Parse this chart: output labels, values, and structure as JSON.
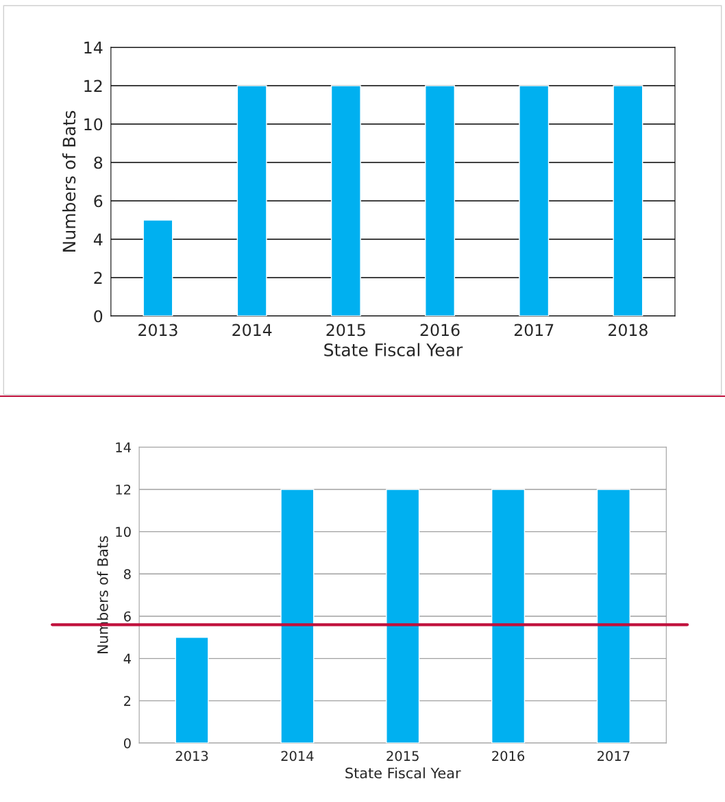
{
  "chart_data": [
    {
      "type": "bar",
      "xlabel": "State Fiscal Year",
      "ylabel": "Numbers of Bats",
      "categories": [
        "2013",
        "2014",
        "2015",
        "2016",
        "2017",
        "2018"
      ],
      "values": [
        5,
        12,
        12,
        12,
        12,
        12
      ],
      "color": "#00b0f0",
      "ylim": [
        0,
        14
      ],
      "yticks": [
        0,
        2,
        4,
        6,
        8,
        10,
        12,
        14
      ],
      "grid": "y"
    },
    {
      "type": "bar",
      "xlabel": "State Fiscal Year",
      "ylabel": "Numbers of Bats",
      "categories": [
        "2013",
        "2014",
        "2015",
        "2016",
        "2017"
      ],
      "values": [
        5,
        12,
        12,
        12,
        12
      ],
      "color": "#00b0f0",
      "ylim": [
        0,
        14
      ],
      "yticks": [
        0,
        2,
        4,
        6,
        8,
        10,
        12,
        14
      ],
      "grid": "y",
      "ref_lines": [
        {
          "axis": "y",
          "value": 5.6,
          "color": "#c0103c",
          "line_style": "solid"
        }
      ]
    }
  ]
}
